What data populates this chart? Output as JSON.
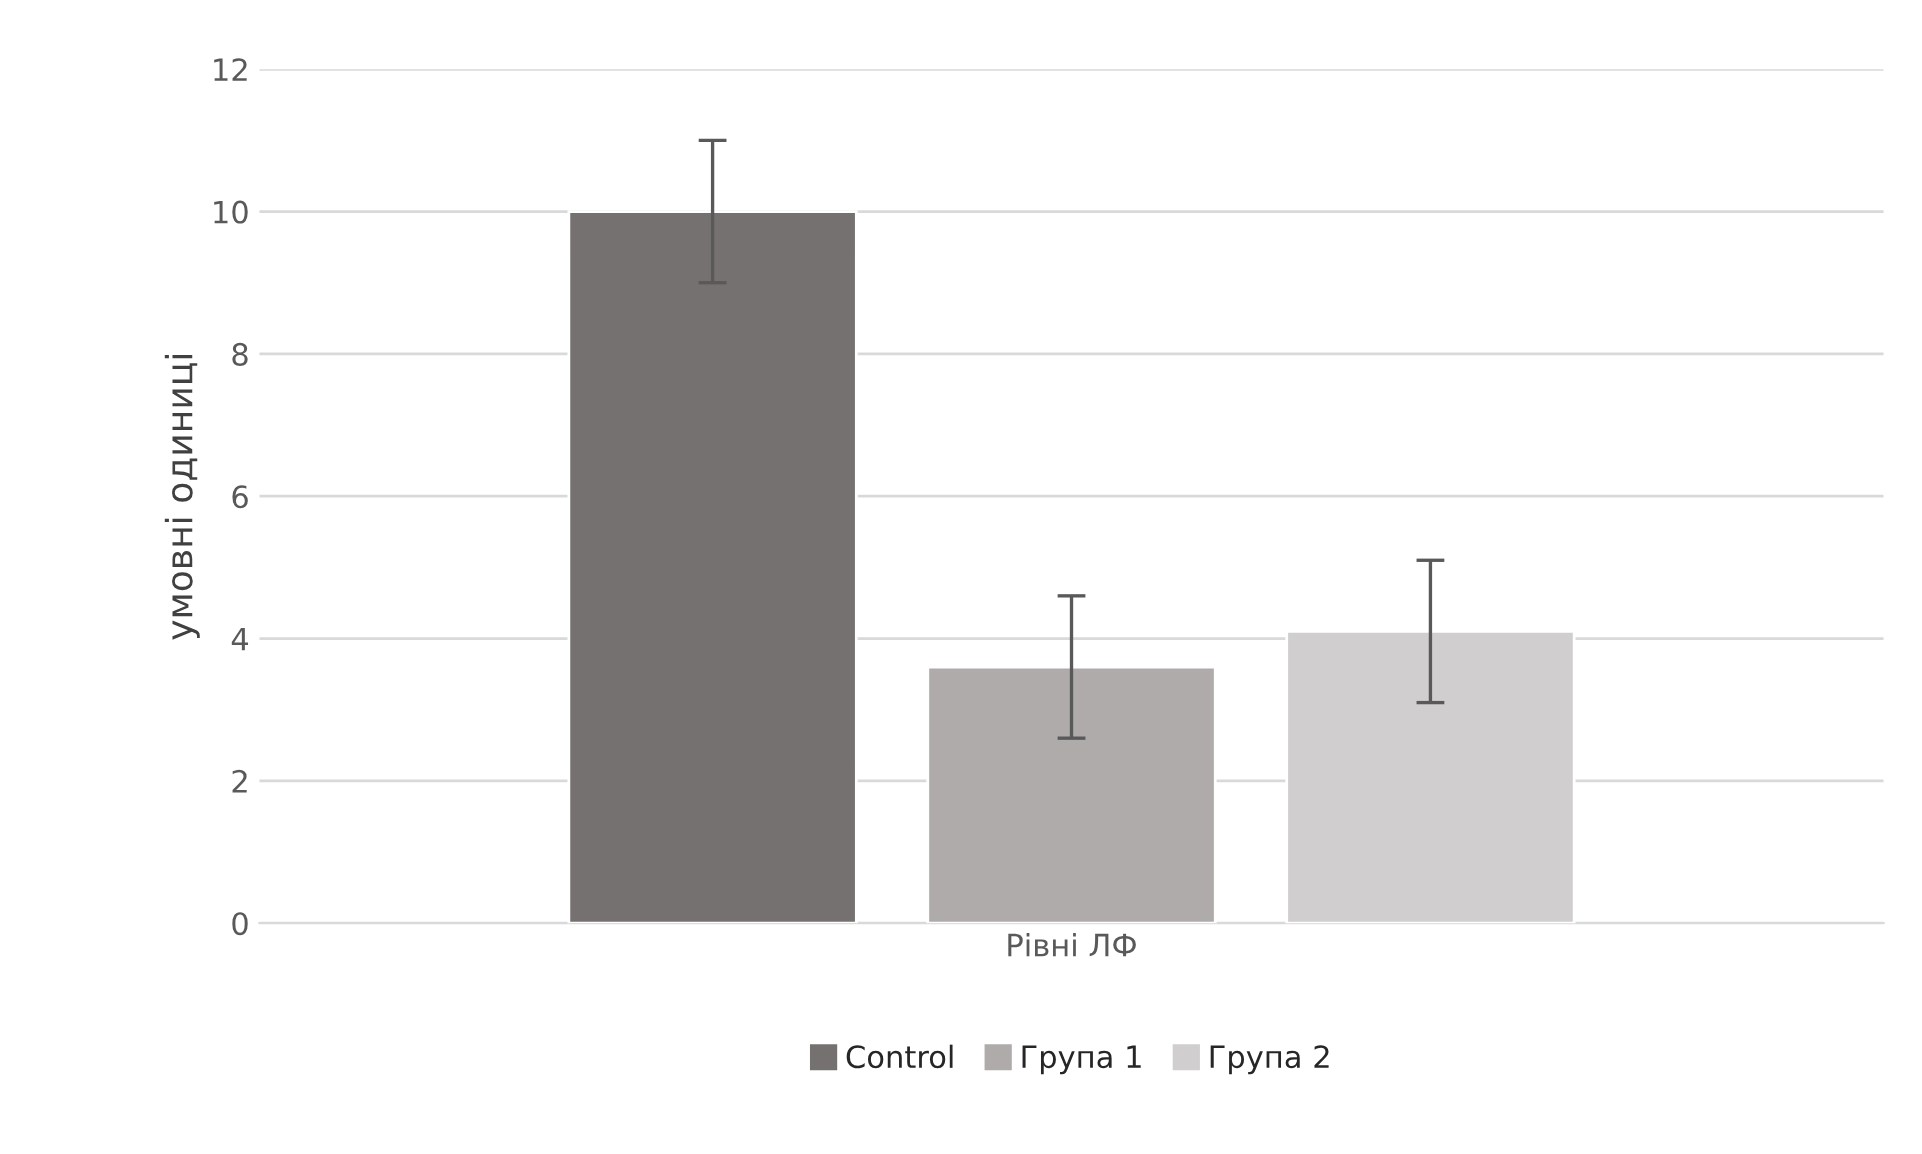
{
  "chart_data": {
    "type": "bar",
    "categories": [
      "Рівні ЛФ"
    ],
    "ylabel": "умовні одиниці",
    "series": [
      {
        "name": "Control",
        "color": "#767171",
        "values": [
          10.0
        ],
        "errors": [
          1.0
        ]
      },
      {
        "name": "Група 1",
        "color": "#afabab",
        "values": [
          3.6
        ],
        "errors": [
          1.0
        ]
      },
      {
        "name": "Група 2",
        "color": "#d0cece",
        "values": [
          4.1
        ],
        "errors": [
          1.0
        ]
      }
    ],
    "ylim": [
      0,
      12
    ],
    "yticks": [
      0,
      2,
      4,
      6,
      8,
      10,
      12
    ],
    "grid": "y",
    "legend": "bottom"
  }
}
